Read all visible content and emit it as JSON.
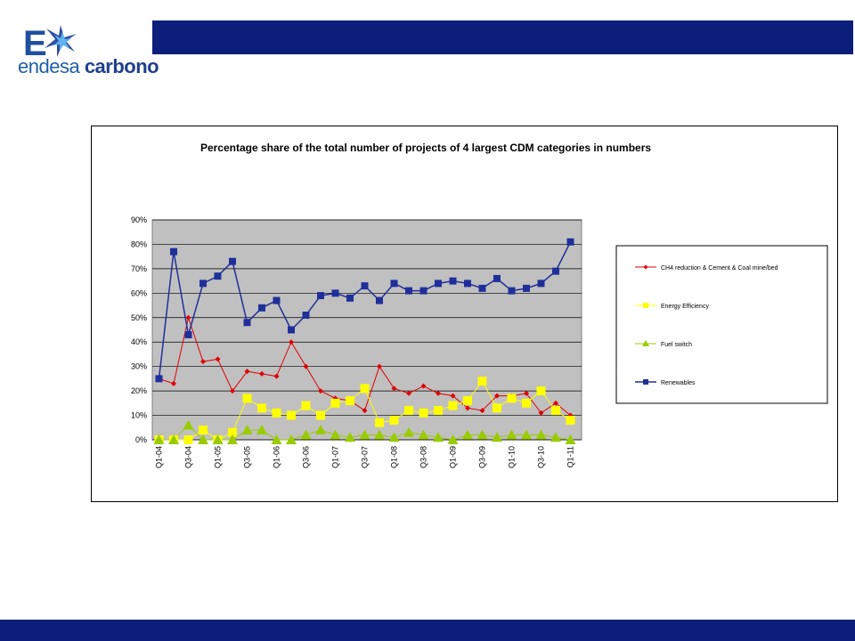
{
  "logo": {
    "word1": "endesa",
    "word2": "carbono",
    "mark_letter": "E"
  },
  "colors": {
    "brand_bar": "#0b1f7a",
    "plot_bg": "#c0c0c0",
    "ch4": "#e00000",
    "energy": "#ffff00",
    "fuel": "#99cc00",
    "renewables": "#1f2f9a"
  },
  "chart_data": {
    "type": "line",
    "title": "Percentage share of the total number of projects of 4 largest CDM categories in numbers",
    "xlabel": "",
    "ylabel": "",
    "ylim": [
      0,
      90
    ],
    "yticks": [
      "0%",
      "10%",
      "20%",
      "30%",
      "40%",
      "50%",
      "60%",
      "70%",
      "80%",
      "90%"
    ],
    "x_tick_labels": [
      "Q1-04",
      "Q3-04",
      "Q1-05",
      "Q3-05",
      "Q1-06",
      "Q3-06",
      "Q1-07",
      "Q3-07",
      "Q1-08",
      "Q3-08",
      "Q1-09",
      "Q3-09",
      "Q1-10",
      "Q3-10",
      "Q1-11"
    ],
    "categories": [
      "Q1-04",
      "Q2-04",
      "Q3-04",
      "Q4-04",
      "Q1-05",
      "Q2-05",
      "Q3-05",
      "Q4-05",
      "Q1-06",
      "Q2-06",
      "Q3-06",
      "Q4-06",
      "Q1-07",
      "Q2-07",
      "Q3-07",
      "Q4-07",
      "Q1-08",
      "Q2-08",
      "Q3-08",
      "Q4-08",
      "Q1-09",
      "Q2-09",
      "Q3-09",
      "Q4-09",
      "Q1-10",
      "Q2-10",
      "Q3-10",
      "Q4-10",
      "Q1-11"
    ],
    "grid": true,
    "legend_position": "right",
    "series": [
      {
        "name": "CH4 reduction & Cement & Coal mine/bed",
        "marker": "diamond",
        "values": [
          25,
          23,
          50,
          32,
          33,
          20,
          28,
          27,
          26,
          40,
          30,
          20,
          17,
          16,
          12,
          30,
          21,
          19,
          22,
          19,
          18,
          13,
          12,
          18,
          18,
          19,
          11,
          15,
          10
        ]
      },
      {
        "name": "Energy Efficiency",
        "marker": "square",
        "values": [
          0,
          0,
          0,
          4,
          0,
          3,
          17,
          13,
          11,
          10,
          14,
          10,
          15,
          16,
          21,
          7,
          8,
          12,
          11,
          12,
          14,
          16,
          24,
          13,
          17,
          15,
          20,
          12,
          8
        ]
      },
      {
        "name": "Fuel switch",
        "marker": "triangle",
        "values": [
          0,
          0,
          6,
          0,
          0,
          0,
          4,
          4,
          0,
          0,
          2,
          4,
          2,
          1,
          2,
          2,
          1,
          3,
          2,
          1,
          0,
          2,
          2,
          1,
          2,
          2,
          2,
          1,
          0
        ]
      },
      {
        "name": "Renewables",
        "marker": "square",
        "values": [
          25,
          77,
          43,
          64,
          67,
          73,
          48,
          54,
          57,
          45,
          51,
          59,
          60,
          58,
          63,
          57,
          64,
          61,
          61,
          64,
          65,
          64,
          62,
          66,
          61,
          62,
          64,
          69,
          81
        ]
      }
    ]
  }
}
